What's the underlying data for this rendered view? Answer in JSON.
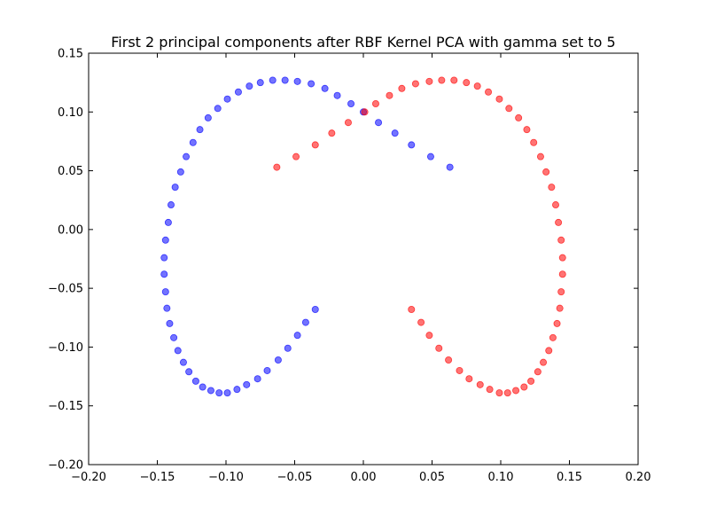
{
  "chart_data": {
    "type": "scatter",
    "title": "First 2 principal components after RBF Kernel PCA with gamma set to 5",
    "xlabel": "",
    "ylabel": "",
    "xlim": [
      -0.2,
      0.2
    ],
    "ylim": [
      -0.2,
      0.15
    ],
    "xticks": [
      -0.2,
      -0.15,
      -0.1,
      -0.05,
      0.0,
      0.05,
      0.1,
      0.15,
      0.2
    ],
    "yticks": [
      -0.2,
      -0.15,
      -0.1,
      -0.05,
      0.0,
      0.05,
      0.1,
      0.15
    ],
    "xtick_labels": [
      "−0.20",
      "−0.15",
      "−0.10",
      "−0.05",
      "0.00",
      "0.05",
      "0.10",
      "0.15",
      "0.20"
    ],
    "ytick_labels": [
      "−0.20",
      "−0.15",
      "−0.10",
      "−0.05",
      "0.00",
      "0.05",
      "0.10",
      "0.15"
    ],
    "grid": false,
    "series": [
      {
        "color": "#0000ff",
        "points": [
          [
            0.063,
            0.053
          ],
          [
            0.049,
            0.062
          ],
          [
            0.035,
            0.072
          ],
          [
            0.023,
            0.082
          ],
          [
            0.011,
            0.091
          ],
          [
            0.0,
            0.1
          ],
          [
            -0.009,
            0.107
          ],
          [
            -0.019,
            0.114
          ],
          [
            -0.028,
            0.12
          ],
          [
            -0.038,
            0.124
          ],
          [
            -0.048,
            0.126
          ],
          [
            -0.057,
            0.127
          ],
          [
            -0.066,
            0.127
          ],
          [
            -0.075,
            0.125
          ],
          [
            -0.083,
            0.122
          ],
          [
            -0.091,
            0.117
          ],
          [
            -0.099,
            0.111
          ],
          [
            -0.106,
            0.103
          ],
          [
            -0.113,
            0.095
          ],
          [
            -0.119,
            0.085
          ],
          [
            -0.124,
            0.074
          ],
          [
            -0.129,
            0.062
          ],
          [
            -0.133,
            0.049
          ],
          [
            -0.137,
            0.036
          ],
          [
            -0.14,
            0.021
          ],
          [
            -0.142,
            0.006
          ],
          [
            -0.144,
            -0.009
          ],
          [
            -0.145,
            -0.024
          ],
          [
            -0.145,
            -0.038
          ],
          [
            -0.144,
            -0.053
          ],
          [
            -0.143,
            -0.067
          ],
          [
            -0.141,
            -0.08
          ],
          [
            -0.138,
            -0.092
          ],
          [
            -0.135,
            -0.103
          ],
          [
            -0.131,
            -0.113
          ],
          [
            -0.127,
            -0.121
          ],
          [
            -0.122,
            -0.129
          ],
          [
            -0.117,
            -0.134
          ],
          [
            -0.111,
            -0.137
          ],
          [
            -0.105,
            -0.139
          ],
          [
            -0.099,
            -0.139
          ],
          [
            -0.092,
            -0.136
          ],
          [
            -0.085,
            -0.132
          ],
          [
            -0.077,
            -0.127
          ],
          [
            -0.07,
            -0.12
          ],
          [
            -0.062,
            -0.111
          ],
          [
            -0.055,
            -0.101
          ],
          [
            -0.048,
            -0.09
          ],
          [
            -0.042,
            -0.079
          ],
          [
            -0.035,
            -0.068
          ]
        ]
      },
      {
        "color": "#ff0000",
        "points": [
          [
            -0.063,
            0.053
          ],
          [
            -0.049,
            0.062
          ],
          [
            -0.035,
            0.072
          ],
          [
            -0.023,
            0.082
          ],
          [
            -0.011,
            0.091
          ],
          [
            0.001,
            0.1
          ],
          [
            0.009,
            0.107
          ],
          [
            0.019,
            0.114
          ],
          [
            0.028,
            0.12
          ],
          [
            0.038,
            0.124
          ],
          [
            0.048,
            0.126
          ],
          [
            0.057,
            0.127
          ],
          [
            0.066,
            0.127
          ],
          [
            0.075,
            0.125
          ],
          [
            0.083,
            0.122
          ],
          [
            0.091,
            0.117
          ],
          [
            0.099,
            0.111
          ],
          [
            0.106,
            0.103
          ],
          [
            0.113,
            0.095
          ],
          [
            0.119,
            0.085
          ],
          [
            0.124,
            0.074
          ],
          [
            0.129,
            0.062
          ],
          [
            0.133,
            0.049
          ],
          [
            0.137,
            0.036
          ],
          [
            0.14,
            0.021
          ],
          [
            0.142,
            0.006
          ],
          [
            0.144,
            -0.009
          ],
          [
            0.145,
            -0.024
          ],
          [
            0.145,
            -0.038
          ],
          [
            0.144,
            -0.053
          ],
          [
            0.143,
            -0.067
          ],
          [
            0.141,
            -0.08
          ],
          [
            0.138,
            -0.092
          ],
          [
            0.135,
            -0.103
          ],
          [
            0.131,
            -0.113
          ],
          [
            0.127,
            -0.121
          ],
          [
            0.122,
            -0.129
          ],
          [
            0.117,
            -0.134
          ],
          [
            0.111,
            -0.137
          ],
          [
            0.105,
            -0.139
          ],
          [
            0.099,
            -0.139
          ],
          [
            0.092,
            -0.136
          ],
          [
            0.085,
            -0.132
          ],
          [
            0.077,
            -0.127
          ],
          [
            0.07,
            -0.12
          ],
          [
            0.062,
            -0.111
          ],
          [
            0.055,
            -0.101
          ],
          [
            0.048,
            -0.09
          ],
          [
            0.042,
            -0.079
          ],
          [
            0.035,
            -0.068
          ]
        ]
      }
    ]
  }
}
